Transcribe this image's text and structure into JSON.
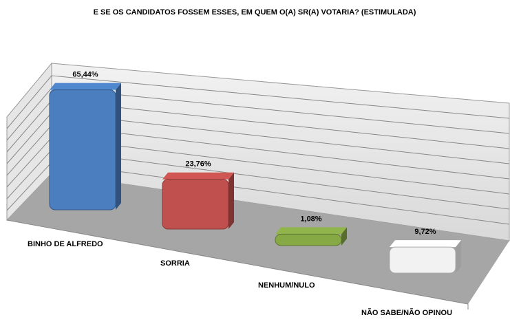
{
  "chart_data": {
    "type": "bar",
    "title": "E SE OS CANDIDATOS FOSSEM ESSES, EM QUEM O(A) SR(A) VOTARIA? (ESTIMULADA)",
    "categories": [
      "BINHO DE ALFREDO",
      "SORRIA",
      "NENHUM/NULO",
      "NÃO SABE/NÃO OPINOU"
    ],
    "values": [
      65.44,
      23.76,
      1.08,
      9.72
    ],
    "value_labels": [
      "65,44%",
      "23,76%",
      "1,08%",
      "9,72%"
    ],
    "colors": [
      "#4a7ebf",
      "#c0504d",
      "#86a845",
      "#f2f2f2"
    ]
  }
}
